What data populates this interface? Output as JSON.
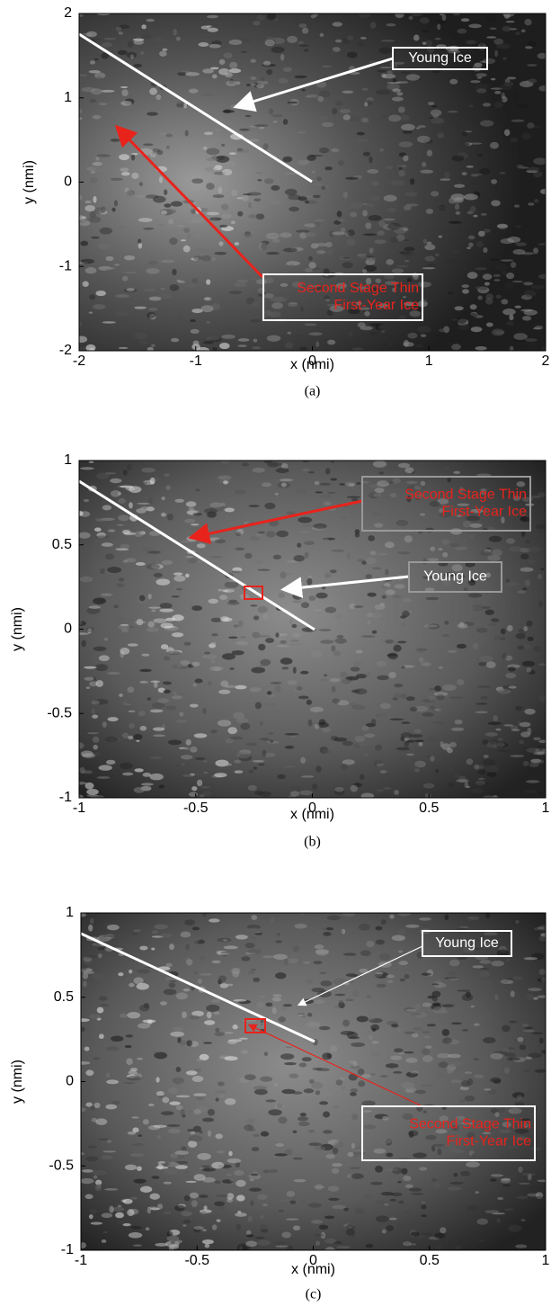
{
  "chart_data": [
    {
      "type": "image",
      "xlabel": "x (nmi)",
      "ylabel": "y (nmi)",
      "caption": "(a)",
      "xlim": [
        -2,
        2
      ],
      "ylim": [
        -2,
        2
      ],
      "xticks": [
        -2,
        -1,
        0,
        1,
        2
      ],
      "yticks": [
        -2,
        -1,
        0,
        1,
        2
      ],
      "annotations": [
        {
          "lines": [
            "Young Ice"
          ],
          "color": "#ffffff"
        },
        {
          "lines": [
            "Second Stage Thin",
            "First-Year Ice"
          ],
          "color": "#e8231c"
        }
      ]
    },
    {
      "type": "image",
      "xlabel": "x (nmi)",
      "ylabel": "y (nmi)",
      "caption": "(b)",
      "xlim": [
        -1,
        1
      ],
      "ylim": [
        -1,
        1
      ],
      "xticks": [
        -1,
        -0.5,
        0,
        0.5,
        1
      ],
      "yticks": [
        -1,
        -0.5,
        0,
        0.5,
        1
      ],
      "annotations": [
        {
          "lines": [
            "Young Ice"
          ],
          "color": "#ffffff"
        },
        {
          "lines": [
            "Second Stage Thin",
            "First-Year Ice"
          ],
          "color": "#e8231c"
        }
      ]
    },
    {
      "type": "image",
      "xlabel": "x (nmi)",
      "ylabel": "y (nmi)",
      "caption": "(c)",
      "xlim": [
        -1,
        1
      ],
      "ylim": [
        -1,
        1
      ],
      "xticks": [
        -1,
        -0.5,
        0,
        0.5,
        1
      ],
      "yticks": [
        -1,
        -0.5,
        0,
        0.5,
        1
      ],
      "annotations": [
        {
          "lines": [
            "Young Ice"
          ],
          "color": "#ffffff"
        },
        {
          "lines": [
            "Second Stage Thin",
            "First-Year Ice"
          ],
          "color": "#e8231c"
        }
      ]
    }
  ]
}
